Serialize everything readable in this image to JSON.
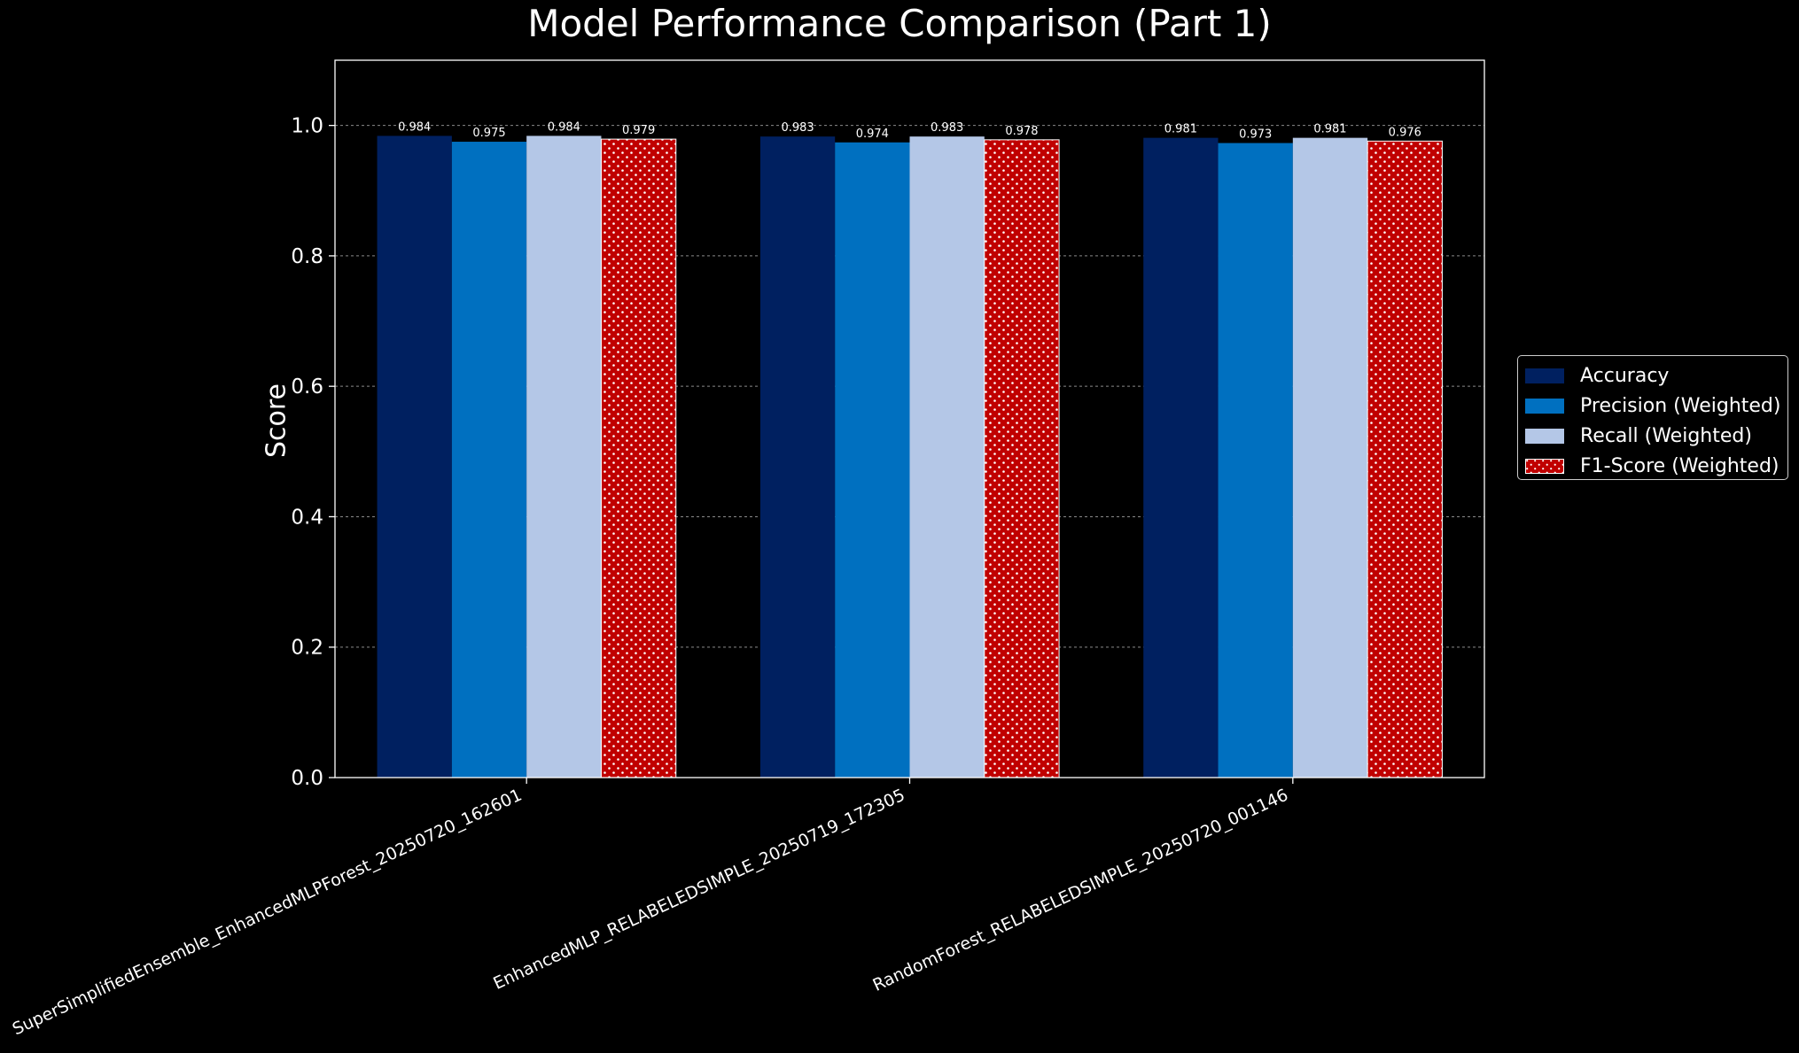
{
  "chart_data": {
    "type": "bar",
    "title": "Model Performance Comparison (Part 1)",
    "xlabel": "",
    "ylabel": "Score",
    "ylim": [
      0,
      1.1
    ],
    "yticks": [
      "0.0",
      "0.2",
      "0.4",
      "0.6",
      "0.8",
      "1.0"
    ],
    "grid": "horizontal dashed",
    "legend_position": "outside-right",
    "categories": [
      "SuperSimplifiedEnsemble_EnhancedMLPForest_20250720_162601",
      "EnhancedMLP_RELABELEDSIMPLE_20250719_172305",
      "RandomForest_RELABELEDSIMPLE_20250720_001146"
    ],
    "series": [
      {
        "name": "Accuracy",
        "color": "#002060",
        "values": [
          0.984,
          0.983,
          0.981
        ],
        "labels": [
          "0.984",
          "0.983",
          "0.981"
        ]
      },
      {
        "name": "Precision (Weighted)",
        "color": "#0070c0",
        "values": [
          0.975,
          0.974,
          0.973
        ],
        "labels": [
          "0.975",
          "0.974",
          "0.973"
        ]
      },
      {
        "name": "Recall (Weighted)",
        "color": "#b4c7e7",
        "values": [
          0.984,
          0.983,
          0.981
        ],
        "labels": [
          "0.984",
          "0.983",
          "0.981"
        ]
      },
      {
        "name": "F1-Score (Weighted)",
        "color": "#c00000",
        "hatch": "dots",
        "values": [
          0.979,
          0.978,
          0.976
        ],
        "labels": [
          "0.979",
          "0.978",
          "0.976"
        ]
      }
    ]
  }
}
